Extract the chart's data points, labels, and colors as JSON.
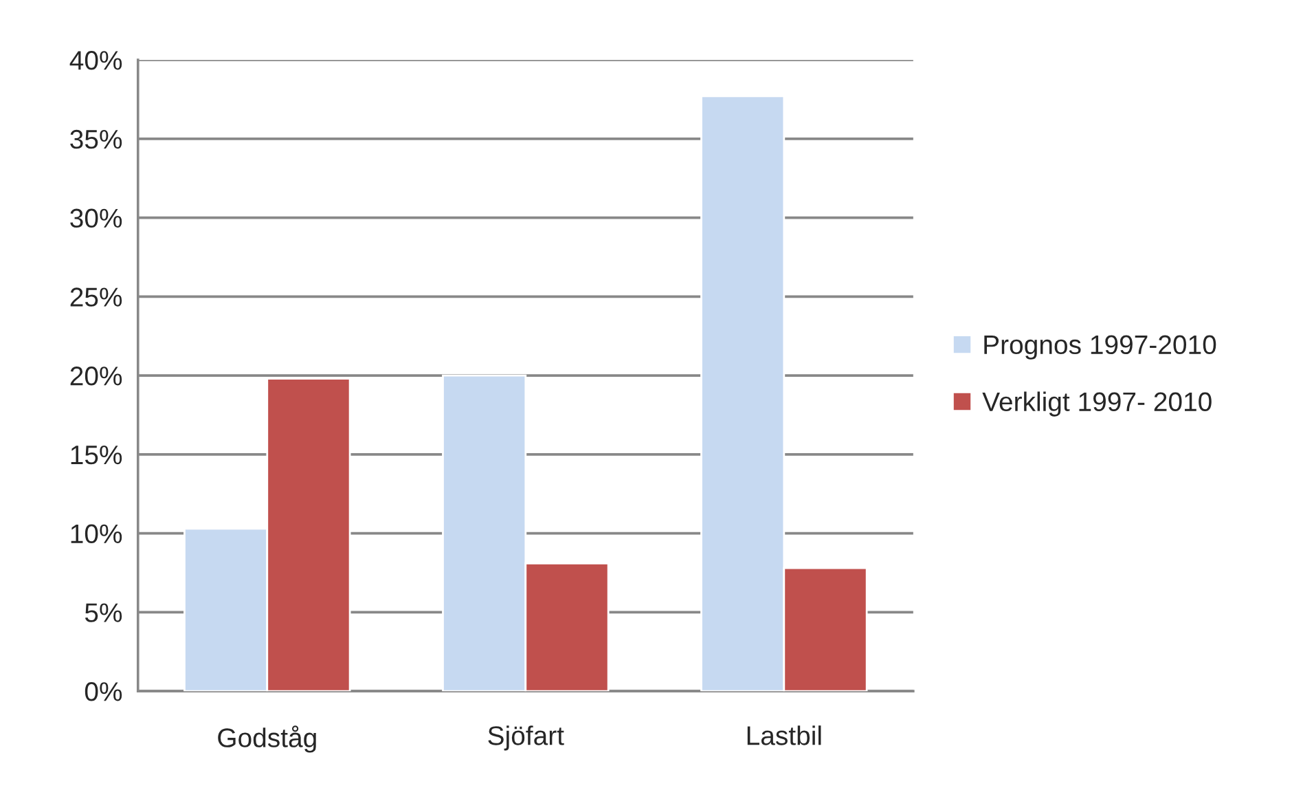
{
  "chart_data": {
    "type": "bar",
    "categories": [
      "Godståg",
      "Sjöfart",
      "Lastbil"
    ],
    "series": [
      {
        "name": "Prognos 1997-2010",
        "color": "#c6d9f1",
        "values": [
          10.3,
          20.0,
          37.7
        ]
      },
      {
        "name": "Verkligt 1997- 2010",
        "color": "#c0504d",
        "values": [
          19.8,
          8.1,
          7.8
        ]
      }
    ],
    "ylim": [
      0,
      40
    ],
    "yticks": [
      {
        "value": 0,
        "label": "0%"
      },
      {
        "value": 5,
        "label": "5%"
      },
      {
        "value": 10,
        "label": "10%"
      },
      {
        "value": 15,
        "label": "15%"
      },
      {
        "value": 20,
        "label": "20%"
      },
      {
        "value": 25,
        "label": "25%"
      },
      {
        "value": 30,
        "label": "30%"
      },
      {
        "value": 35,
        "label": "35%"
      },
      {
        "value": 40,
        "label": "40%"
      }
    ],
    "grid": "y",
    "legend": "right"
  }
}
